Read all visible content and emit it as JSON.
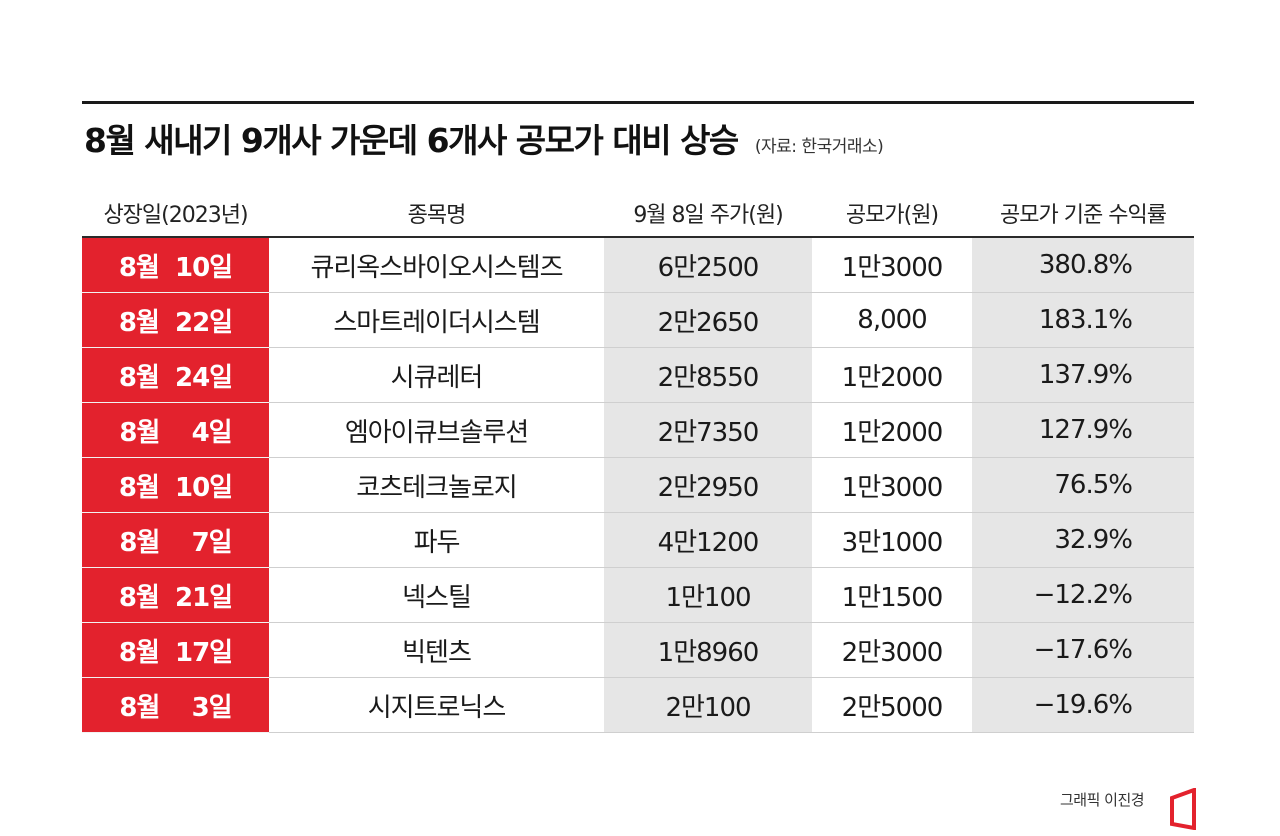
{
  "title": "8월 새내기 9개사 가운데 6개사 공모가 대비 상승",
  "source": "(자료: 한국거래소)",
  "credit": "그래픽 이진경",
  "colors": {
    "accent_red": "#e3222d",
    "shade_gray": "#e6e6e6",
    "rule_black": "#1a1a1a"
  },
  "chart_data": {
    "type": "table",
    "title": "8월 새내기 9개사 가운데 6개사 공모가 대비 상승",
    "columns": [
      "상장일(2023년)",
      "종목명",
      "9월 8일 주가(원)",
      "공모가(원)",
      "공모가 기준 수익률"
    ],
    "rows": [
      [
        "8월  10일",
        "큐리옥스바이오시스템즈",
        "6만2500",
        "1만3000",
        "380.8%"
      ],
      [
        "8월  22일",
        "스마트레이더시스템",
        "2만2650",
        "8,000",
        "183.1%"
      ],
      [
        "8월  24일",
        "시큐레터",
        "2만8550",
        "1만2000",
        "137.9%"
      ],
      [
        "8월    4일",
        "엠아이큐브솔루션",
        "2만7350",
        "1만2000",
        "127.9%"
      ],
      [
        "8월  10일",
        "코츠테크놀로지",
        "2만2950",
        "1만3000",
        "76.5%"
      ],
      [
        "8월    7일",
        "파두",
        "4만1200",
        "3만1000",
        "32.9%"
      ],
      [
        "8월  21일",
        "넥스틸",
        "1만100",
        "1만1500",
        "−12.2%"
      ],
      [
        "8월  17일",
        "빅텐츠",
        "1만8960",
        "2만3000",
        "−17.6%"
      ],
      [
        "8월    3일",
        "시지트로닉스",
        "2만100",
        "2만5000",
        "−19.6%"
      ]
    ]
  }
}
